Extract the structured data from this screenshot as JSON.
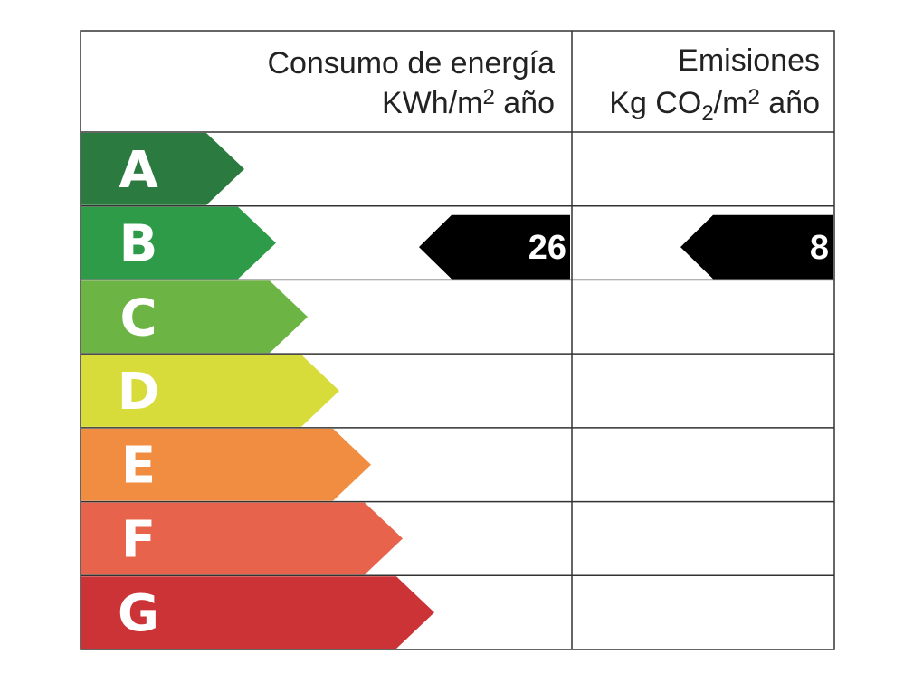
{
  "header": {
    "energy": {
      "line1": "Consumo de energía",
      "line2": [
        "KWh/m",
        "2",
        " año"
      ]
    },
    "emissions": {
      "line1": "Emisiones",
      "line2": [
        "Kg CO",
        "2",
        "/m",
        "2",
        " año"
      ]
    }
  },
  "rows": [
    {
      "letter": "A",
      "color": "#2b7a3f"
    },
    {
      "letter": "B",
      "color": "#2e9b48",
      "energy": 26,
      "emissions": 8
    },
    {
      "letter": "C",
      "color": "#6cb444"
    },
    {
      "letter": "D",
      "color": "#d8dc3a"
    },
    {
      "letter": "E",
      "color": "#f18d40"
    },
    {
      "letter": "F",
      "color": "#e8634b"
    },
    {
      "letter": "G",
      "color": "#cc3336"
    }
  ]
}
